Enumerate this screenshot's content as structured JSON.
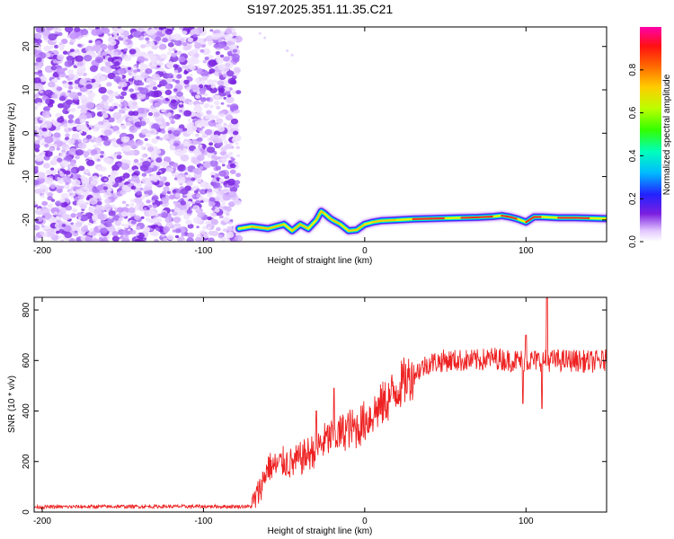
{
  "title": "S197.2025.351.11.35.C21",
  "chart_data": [
    {
      "type": "heatmap",
      "name": "spectrogram",
      "xlabel": "Height of straight line (km)",
      "ylabel": "Frequency (Hz)",
      "xlim": [
        -205,
        150
      ],
      "ylim": [
        -25,
        24.5
      ],
      "xticks": [
        -200,
        -100,
        0,
        100
      ],
      "yticks": [
        -20,
        -10,
        0,
        10,
        20
      ],
      "noise_region_x": [
        -205,
        -78
      ],
      "ridge": {
        "x": [
          -78,
          -70,
          -60,
          -50,
          -45,
          -40,
          -35,
          -30,
          -27,
          -25,
          -22,
          -20,
          -15,
          -10,
          -5,
          0,
          5,
          10,
          20,
          30,
          40,
          50,
          60,
          70,
          80,
          85,
          90,
          95,
          100,
          105,
          110,
          120,
          130,
          140,
          150
        ],
        "freq": [
          -22,
          -21.5,
          -22,
          -21,
          -22.5,
          -21,
          -22,
          -20,
          -18,
          -18.5,
          -19.5,
          -20,
          -21,
          -22.5,
          -22.3,
          -21,
          -20.5,
          -20.2,
          -20,
          -19.8,
          -19.7,
          -19.6,
          -19.5,
          -19.4,
          -19.2,
          -19,
          -19.3,
          -19.8,
          -20.5,
          -19.3,
          -19.3,
          -19.5,
          -19.5,
          -19.6,
          -19.7
        ]
      },
      "colorbar": {
        "label": "Normalized spectral amplitude",
        "range": [
          0,
          1
        ],
        "ticks": [
          "0.0",
          "0.2",
          "0.4",
          "0.6",
          "0.8"
        ]
      }
    },
    {
      "type": "line",
      "name": "snr",
      "xlabel": "Height of straight line (km)",
      "ylabel": "SNR (10 * v/v)",
      "xlim": [
        -205,
        150
      ],
      "ylim": [
        0,
        850
      ],
      "xticks": [
        -200,
        -100,
        0,
        100
      ],
      "yticks": [
        0,
        200,
        400,
        600,
        800
      ],
      "color": "#ee2222",
      "series": [
        {
          "name": "SNR",
          "x": [
            -205,
            -150,
            -100,
            -70,
            -65,
            -60,
            -55,
            -50,
            -45,
            -40,
            -35,
            -30,
            -25,
            -20,
            -15,
            -10,
            -5,
            0,
            5,
            10,
            15,
            20,
            25,
            30,
            35,
            40,
            50,
            60,
            70,
            80,
            90,
            100,
            110,
            120,
            130,
            140,
            150
          ],
          "values": [
            20,
            22,
            22,
            22,
            90,
            180,
            180,
            200,
            190,
            210,
            230,
            250,
            280,
            300,
            310,
            330,
            330,
            360,
            390,
            420,
            450,
            490,
            520,
            545,
            570,
            590,
            600,
            600,
            600,
            610,
            600,
            600,
            600,
            600,
            600,
            595,
            600
          ]
        }
      ],
      "spikes": [
        {
          "x": -30,
          "value": 400
        },
        {
          "x": -19,
          "value": 490
        },
        {
          "x": 98,
          "value": 430
        },
        {
          "x": 100,
          "value": 700
        },
        {
          "x": 110,
          "value": 410
        },
        {
          "x": 113,
          "value": 848
        }
      ]
    }
  ]
}
